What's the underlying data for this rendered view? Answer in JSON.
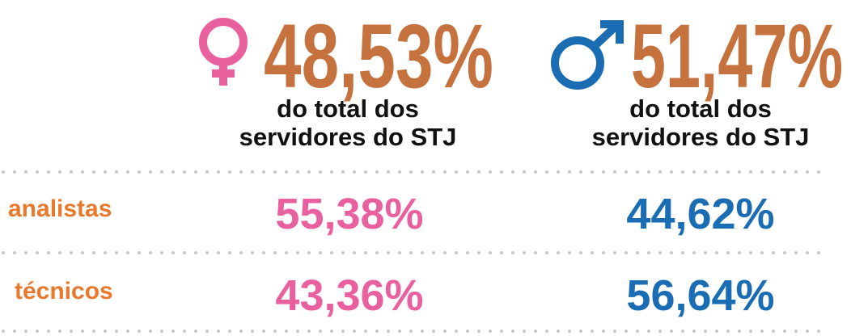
{
  "female": {
    "percent": "48,53%",
    "caption": [
      "do total dos",
      "servidores do STJ"
    ]
  },
  "male": {
    "percent": "51,47%",
    "caption": [
      "do total dos",
      "servidores do STJ"
    ]
  },
  "rows": [
    {
      "label": "analistas",
      "female": "55,38%",
      "male": "44,62%"
    },
    {
      "label": "técnicos",
      "female": "43,36%",
      "male": "56,64%"
    }
  ]
}
